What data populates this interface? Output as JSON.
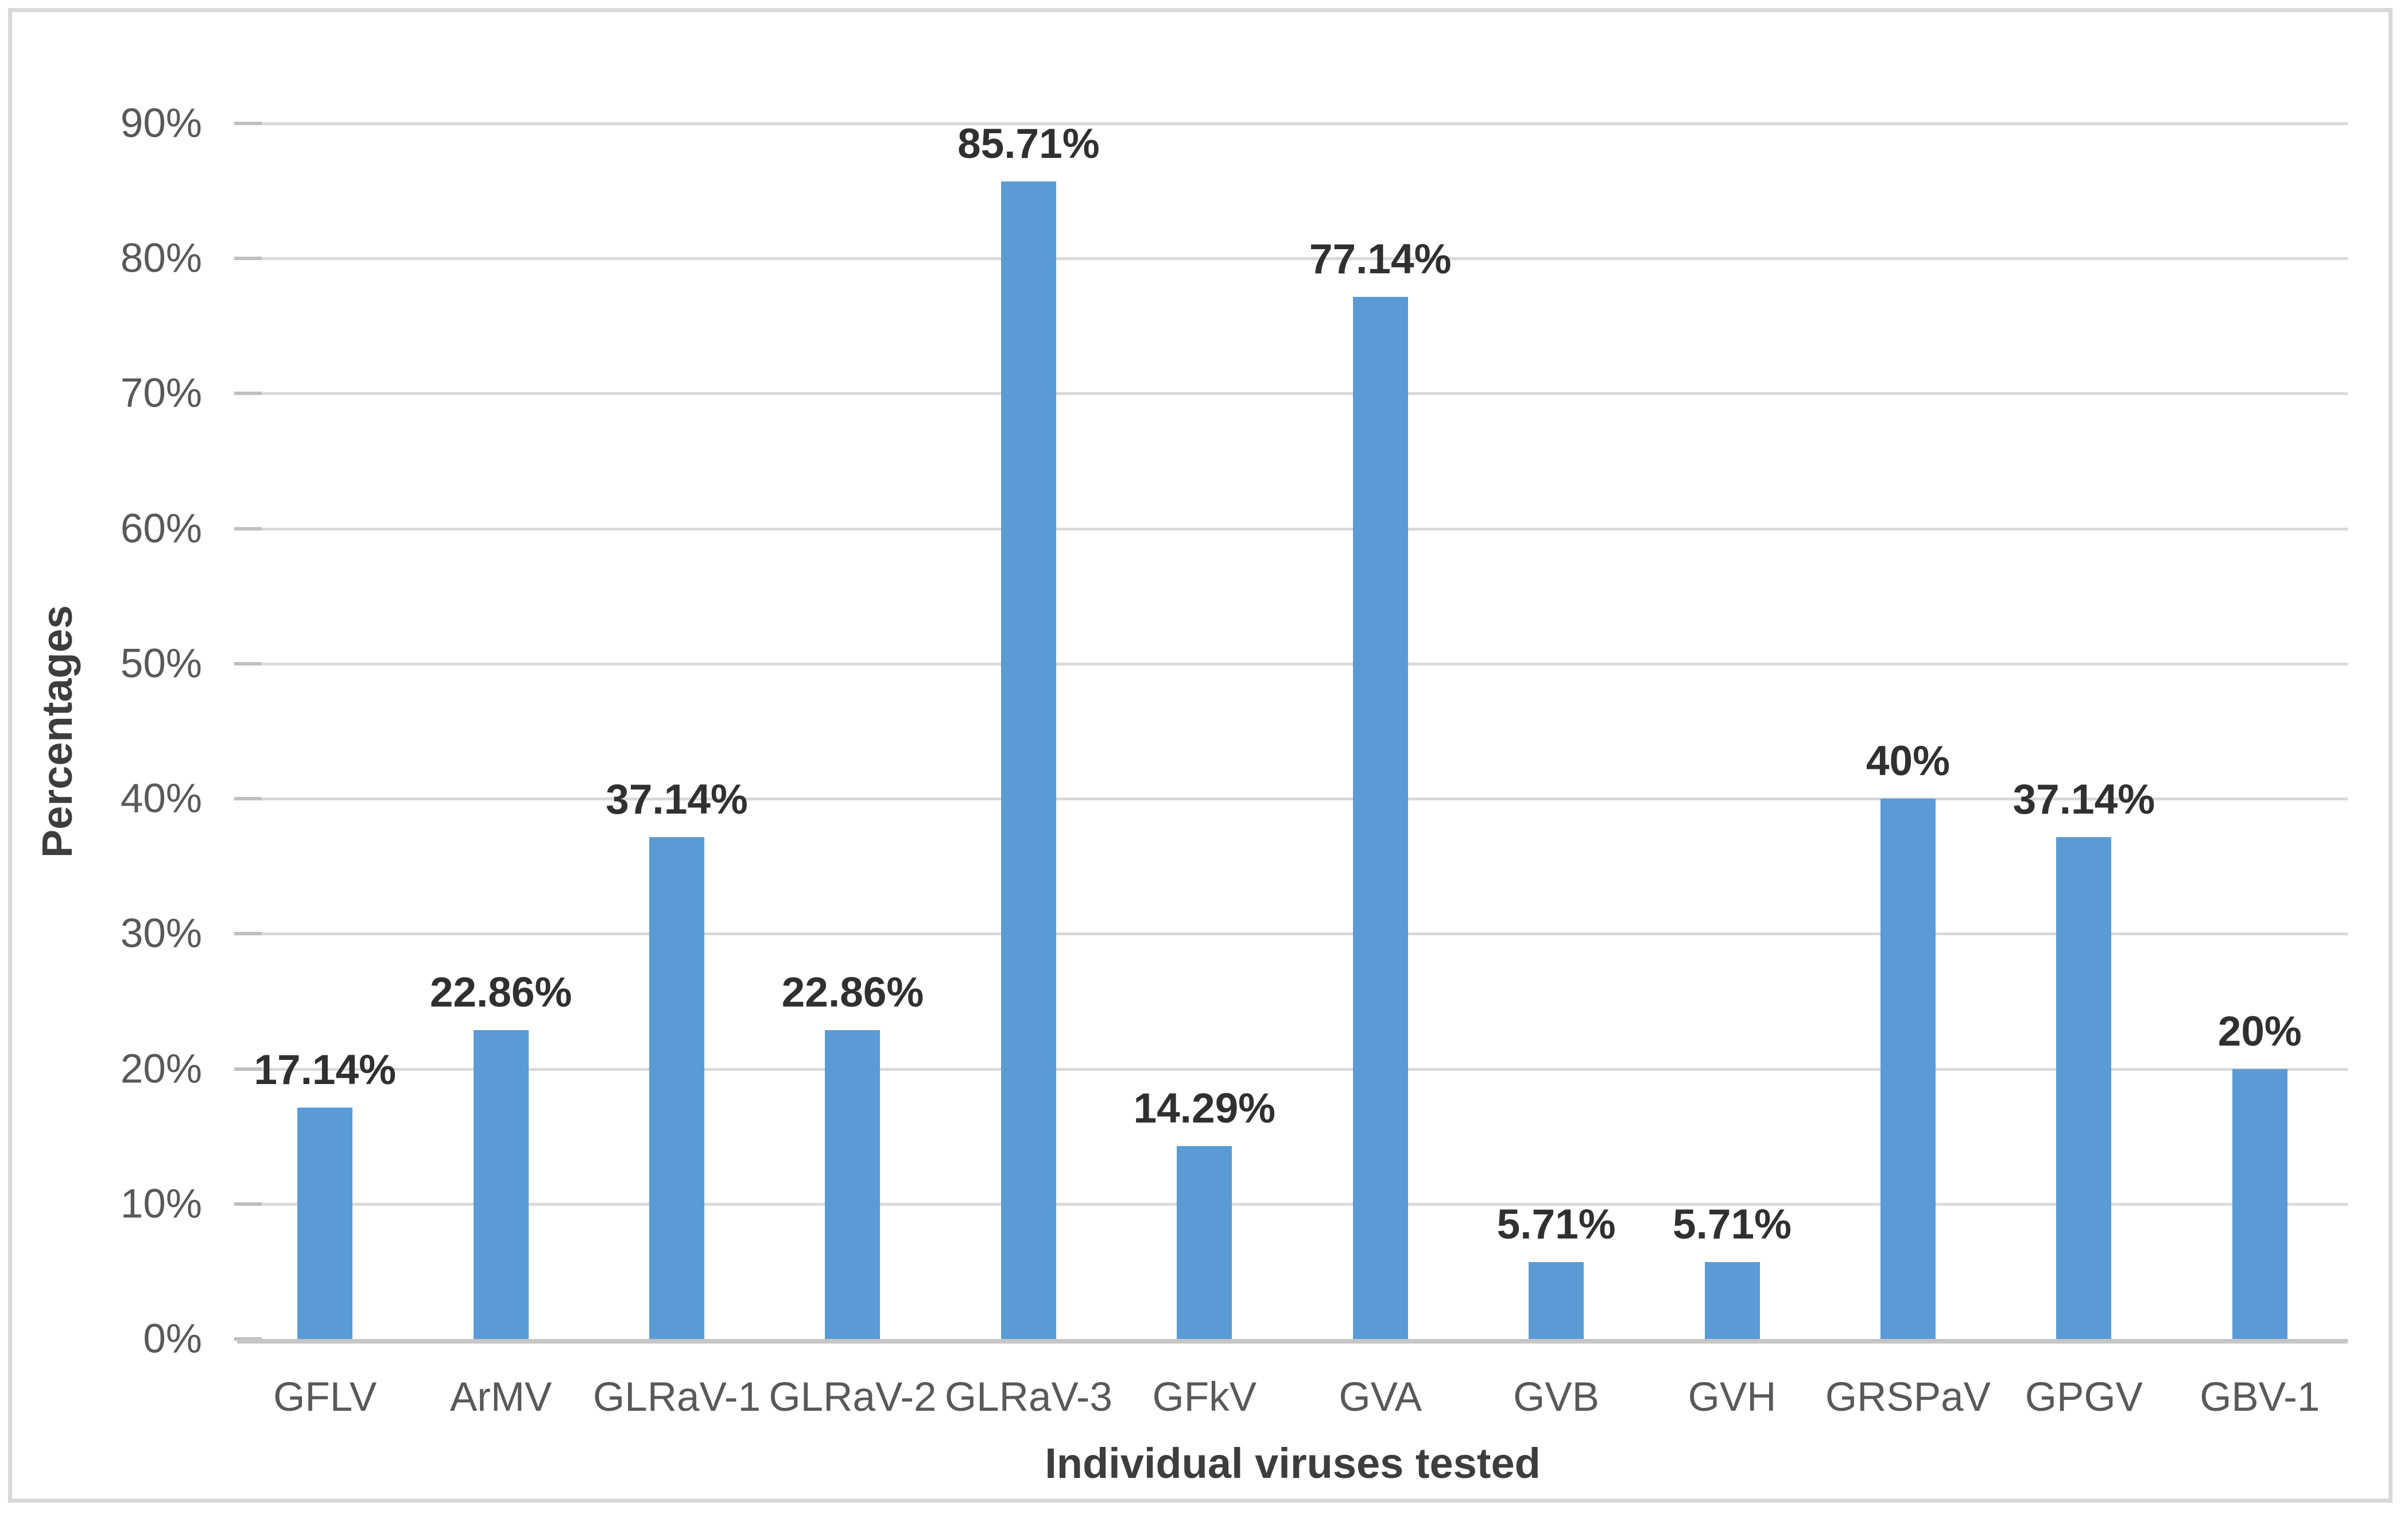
{
  "chart_data": {
    "type": "bar",
    "title": "",
    "xlabel": "Individual viruses tested",
    "ylabel": "Percentages",
    "categories": [
      "GFLV",
      "ArMV",
      "GLRaV-1",
      "GLRaV-2",
      "GLRaV-3",
      "GFkV",
      "GVA",
      "GVB",
      "GVH",
      "GRSPaV",
      "GPGV",
      "GBV-1"
    ],
    "values": [
      17.14,
      22.86,
      37.14,
      22.86,
      85.71,
      14.29,
      77.14,
      5.71,
      5.71,
      40,
      37.14,
      20
    ],
    "data_labels": [
      "17.14%",
      "22.86%",
      "37.14%",
      "22.86%",
      "85.71%",
      "14.29%",
      "77.14%",
      "5.71%",
      "5.71%",
      "40%",
      "37.14%",
      "20%"
    ],
    "ytick_labels": [
      "0%",
      "10%",
      "20%",
      "30%",
      "40%",
      "50%",
      "60%",
      "70%",
      "80%",
      "90%"
    ],
    "ytick_values": [
      0,
      10,
      20,
      30,
      40,
      50,
      60,
      70,
      80,
      90
    ],
    "ylim": [
      0,
      90
    ],
    "grid": "horizontal-major",
    "legend": "none",
    "colors": {
      "bar": "#5b9bd5",
      "gridline": "#d9d9d9",
      "axis_line": "#c6c6c6",
      "tick_mark": "#bfbfbf",
      "tick_label": "#595959",
      "data_label": "#303030",
      "axis_title": "#3d3d3d",
      "frame_border": "#d8d8d8",
      "background": "#ffffff"
    }
  }
}
